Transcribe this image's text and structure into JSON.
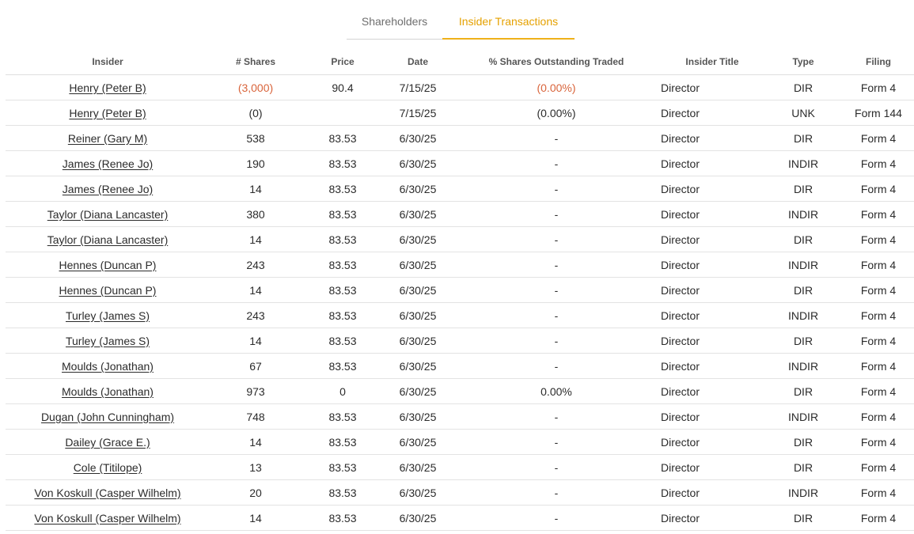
{
  "tabs": [
    {
      "label": "Shareholders",
      "active": false
    },
    {
      "label": "Insider Transactions",
      "active": true
    }
  ],
  "colors": {
    "accent": "#efb11a",
    "negative": "#d9643b"
  },
  "table": {
    "headers": [
      "Insider",
      "# Shares",
      "Price",
      "Date",
      "% Shares Outstanding Traded",
      "Insider Title",
      "Type",
      "Filing"
    ],
    "rows": [
      {
        "insider": "Henry (Peter B)",
        "shares": "(3,000)",
        "price": "90.4",
        "date": "7/15/25",
        "pct": "(0.00%)",
        "title": "Director",
        "type": "DIR",
        "filing": "Form 4",
        "negative": true
      },
      {
        "insider": "Henry (Peter B)",
        "shares": "(0)",
        "price": "",
        "date": "7/15/25",
        "pct": "(0.00%)",
        "title": "Director",
        "type": "UNK",
        "filing": "Form 144",
        "negative": false
      },
      {
        "insider": "Reiner (Gary M)",
        "shares": "538",
        "price": "83.53",
        "date": "6/30/25",
        "pct": "-",
        "title": "Director",
        "type": "DIR",
        "filing": "Form 4",
        "negative": false
      },
      {
        "insider": "James (Renee Jo)",
        "shares": "190",
        "price": "83.53",
        "date": "6/30/25",
        "pct": "-",
        "title": "Director",
        "type": "INDIR",
        "filing": "Form 4",
        "negative": false
      },
      {
        "insider": "James (Renee Jo)",
        "shares": "14",
        "price": "83.53",
        "date": "6/30/25",
        "pct": "-",
        "title": "Director",
        "type": "DIR",
        "filing": "Form 4",
        "negative": false
      },
      {
        "insider": "Taylor (Diana Lancaster)",
        "shares": "380",
        "price": "83.53",
        "date": "6/30/25",
        "pct": "-",
        "title": "Director",
        "type": "INDIR",
        "filing": "Form 4",
        "negative": false
      },
      {
        "insider": "Taylor (Diana Lancaster)",
        "shares": "14",
        "price": "83.53",
        "date": "6/30/25",
        "pct": "-",
        "title": "Director",
        "type": "DIR",
        "filing": "Form 4",
        "negative": false
      },
      {
        "insider": "Hennes (Duncan P)",
        "shares": "243",
        "price": "83.53",
        "date": "6/30/25",
        "pct": "-",
        "title": "Director",
        "type": "INDIR",
        "filing": "Form 4",
        "negative": false
      },
      {
        "insider": "Hennes (Duncan P)",
        "shares": "14",
        "price": "83.53",
        "date": "6/30/25",
        "pct": "-",
        "title": "Director",
        "type": "DIR",
        "filing": "Form 4",
        "negative": false
      },
      {
        "insider": "Turley (James S)",
        "shares": "243",
        "price": "83.53",
        "date": "6/30/25",
        "pct": "-",
        "title": "Director",
        "type": "INDIR",
        "filing": "Form 4",
        "negative": false
      },
      {
        "insider": "Turley (James S)",
        "shares": "14",
        "price": "83.53",
        "date": "6/30/25",
        "pct": "-",
        "title": "Director",
        "type": "DIR",
        "filing": "Form 4",
        "negative": false
      },
      {
        "insider": "Moulds (Jonathan)",
        "shares": "67",
        "price": "83.53",
        "date": "6/30/25",
        "pct": "-",
        "title": "Director",
        "type": "INDIR",
        "filing": "Form 4",
        "negative": false
      },
      {
        "insider": "Moulds (Jonathan)",
        "shares": "973",
        "price": "0",
        "date": "6/30/25",
        "pct": "0.00%",
        "title": "Director",
        "type": "DIR",
        "filing": "Form 4",
        "negative": false
      },
      {
        "insider": "Dugan (John Cunningham)",
        "shares": "748",
        "price": "83.53",
        "date": "6/30/25",
        "pct": "-",
        "title": "Director",
        "type": "INDIR",
        "filing": "Form 4",
        "negative": false
      },
      {
        "insider": "Dailey (Grace E.)",
        "shares": "14",
        "price": "83.53",
        "date": "6/30/25",
        "pct": "-",
        "title": "Director",
        "type": "DIR",
        "filing": "Form 4",
        "negative": false
      },
      {
        "insider": "Cole (Titilope)",
        "shares": "13",
        "price": "83.53",
        "date": "6/30/25",
        "pct": "-",
        "title": "Director",
        "type": "DIR",
        "filing": "Form 4",
        "negative": false
      },
      {
        "insider": "Von Koskull (Casper Wilhelm)",
        "shares": "20",
        "price": "83.53",
        "date": "6/30/25",
        "pct": "-",
        "title": "Director",
        "type": "INDIR",
        "filing": "Form 4",
        "negative": false
      },
      {
        "insider": "Von Koskull (Casper Wilhelm)",
        "shares": "14",
        "price": "83.53",
        "date": "6/30/25",
        "pct": "-",
        "title": "Director",
        "type": "DIR",
        "filing": "Form 4",
        "negative": false
      }
    ]
  }
}
